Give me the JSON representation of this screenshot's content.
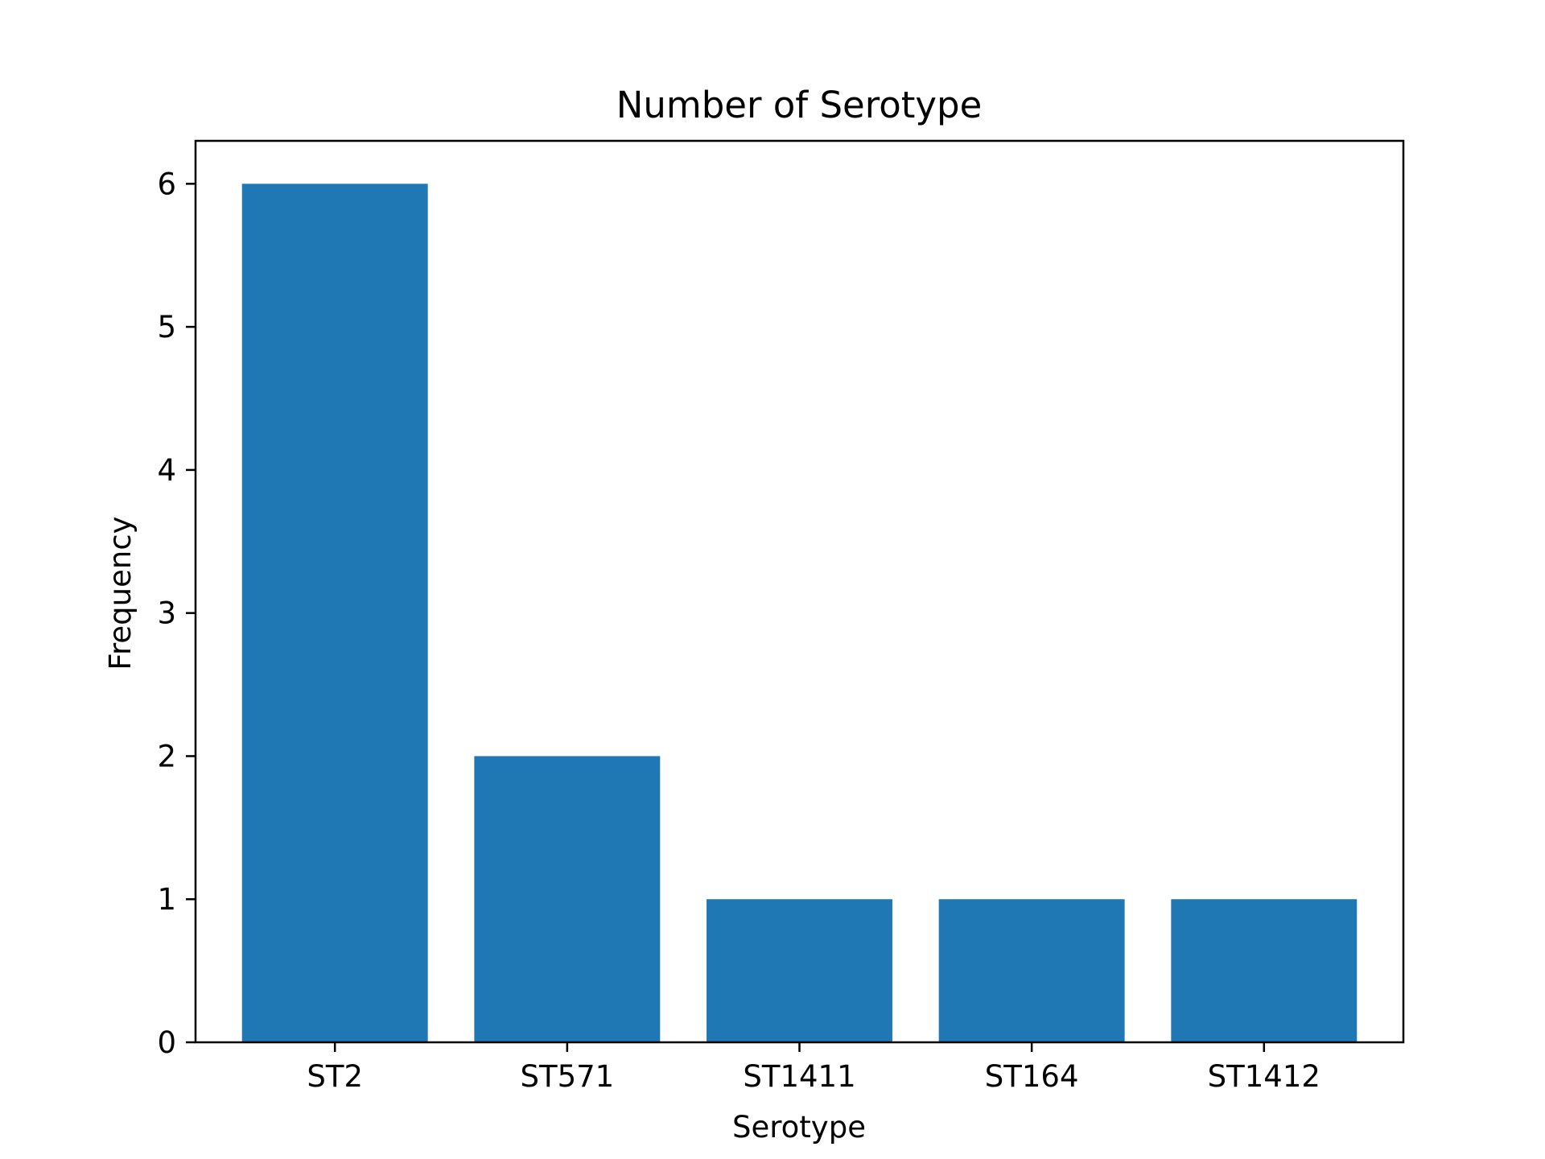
{
  "chart_data": {
    "type": "bar",
    "title": "Number of Serotype",
    "xlabel": "Serotype",
    "ylabel": "Frequency",
    "categories": [
      "ST2",
      "ST571",
      "ST1411",
      "ST164",
      "ST1412"
    ],
    "values": [
      6,
      2,
      1,
      1,
      1
    ],
    "ylim": [
      0,
      6.3
    ],
    "yticks": [
      0,
      1,
      2,
      3,
      4,
      5,
      6
    ],
    "grid": false,
    "bar_color": "#1f77b4"
  }
}
